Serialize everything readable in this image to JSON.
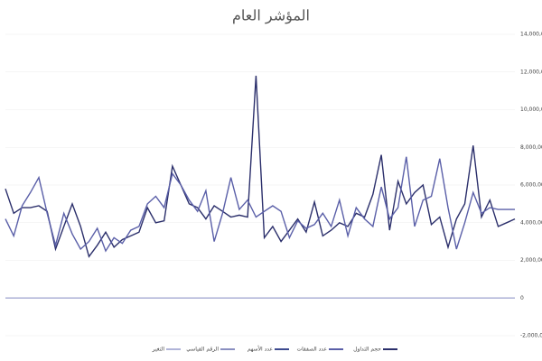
{
  "chart_data": {
    "type": "line",
    "title": "المؤشر العام",
    "categories": [
      null,
      null,
      null,
      null,
      null,
      null,
      null,
      null,
      null,
      null,
      null,
      null,
      null,
      null,
      null,
      null,
      null,
      null,
      null,
      null,
      null,
      null,
      null,
      null,
      null,
      null,
      null,
      null,
      null,
      null,
      null,
      null,
      null,
      null,
      null,
      null,
      null,
      null,
      null,
      null,
      null,
      null,
      null,
      null,
      null,
      null,
      null,
      null,
      null,
      null,
      null,
      null,
      null,
      null,
      null,
      null,
      null,
      null,
      null,
      null,
      null,
      null
    ],
    "ylim": [
      -2000000,
      14000000
    ],
    "yticks": [
      {
        "value": -2000000,
        "label": "-2,000,000"
      },
      0,
      {
        "value": 2000000,
        "label": "2,000,000"
      },
      {
        "value": 4000000,
        "label": "4,000,000"
      },
      {
        "value": 6000000,
        "label": "6,000,000"
      },
      {
        "value": 8000000,
        "label": "8,000,000"
      },
      {
        "value": 10000000,
        "label": "10,000,000"
      },
      {
        "value": 12000000,
        "label": "12,000,000"
      },
      {
        "value": 14000000,
        "label": "14,000,000"
      }
    ],
    "grid": true,
    "legend": "bottom",
    "series": [
      {
        "name": "حجم التداول",
        "color": "#2b2f6b",
        "values": [
          5800000,
          4500000,
          4800000,
          4800000,
          4900000,
          4600000,
          2600000,
          3800000,
          5000000,
          3800000,
          2200000,
          2800000,
          3500000,
          2700000,
          3100000,
          3300000,
          3500000,
          4800000,
          4000000,
          4100000,
          7000000,
          6000000,
          5000000,
          4800000,
          4200000,
          4900000,
          4600000,
          4300000,
          4400000,
          4300000,
          11800000,
          3200000,
          3800000,
          3000000,
          3600000,
          4200000,
          3500000,
          5100000,
          3300000,
          3600000,
          4000000,
          3800000,
          4500000,
          4300000,
          5500000,
          7600000,
          3600000,
          6200000,
          5000000,
          5600000,
          6000000,
          3900000,
          4300000,
          2700000,
          4200000,
          5000000,
          8100000,
          4300000,
          5200000,
          3800000,
          4000000,
          4200000
        ]
      },
      {
        "name": "عدد الصفقات",
        "color": "#5a5fa8",
        "values": [
          4200000,
          3300000,
          4900000,
          5600000,
          6400000,
          4500000,
          2800000,
          4500000,
          3400000,
          2600000,
          3000000,
          3700000,
          2500000,
          3200000,
          2900000,
          3600000,
          3800000,
          5000000,
          5400000,
          4800000,
          6600000,
          6000000,
          5200000,
          4600000,
          5700000,
          3000000,
          4500000,
          6400000,
          4700000,
          5200000,
          4300000,
          4600000,
          4900000,
          4600000,
          3200000,
          4100000,
          3700000,
          3900000,
          4500000,
          3800000,
          5200000,
          3300000,
          4800000,
          4200000,
          3800000,
          5900000,
          4200000,
          4800000,
          7500000,
          3800000,
          5200000,
          5400000,
          7400000,
          4800000,
          2600000,
          4000000,
          5600000,
          4500000,
          4800000,
          4700000,
          4700000,
          4700000
        ]
      },
      {
        "name": "عدد الأسهم",
        "color": "#3d4a8f",
        "values": [
          0,
          0,
          0,
          0,
          0,
          0,
          0,
          0,
          0,
          0,
          0,
          0,
          0,
          0,
          0,
          0,
          0,
          0,
          0,
          0,
          0,
          0,
          0,
          0,
          0,
          0,
          0,
          0,
          0,
          0,
          0,
          0,
          0,
          0,
          0,
          0,
          0,
          0,
          0,
          0,
          0,
          0,
          0,
          0,
          0,
          0,
          0,
          0,
          0,
          0,
          0,
          0,
          0,
          0,
          0,
          0,
          0,
          0,
          0,
          0,
          0,
          0
        ]
      },
      {
        "name": "الرقم القياسي",
        "color": "#8a8fc0",
        "values": [
          0,
          0,
          0,
          0,
          0,
          0,
          0,
          0,
          0,
          0,
          0,
          0,
          0,
          0,
          0,
          0,
          0,
          0,
          0,
          0,
          0,
          0,
          0,
          0,
          0,
          0,
          0,
          0,
          0,
          0,
          0,
          0,
          0,
          0,
          0,
          0,
          0,
          0,
          0,
          0,
          0,
          0,
          0,
          0,
          0,
          0,
          0,
          0,
          0,
          0,
          0,
          0,
          0,
          0,
          0,
          0,
          0,
          0,
          0,
          0,
          0,
          0
        ]
      },
      {
        "name": "التغير",
        "color": "#b0b4d8",
        "values": [
          0,
          0,
          0,
          0,
          0,
          0,
          0,
          0,
          0,
          0,
          0,
          0,
          0,
          0,
          0,
          0,
          0,
          0,
          0,
          0,
          0,
          0,
          0,
          0,
          0,
          0,
          0,
          0,
          0,
          0,
          0,
          0,
          0,
          0,
          0,
          0,
          0,
          0,
          0,
          0,
          0,
          0,
          0,
          0,
          0,
          0,
          0,
          0,
          0,
          0,
          0,
          0,
          0,
          0,
          0,
          0,
          0,
          0,
          0,
          0,
          0,
          0
        ]
      }
    ]
  }
}
